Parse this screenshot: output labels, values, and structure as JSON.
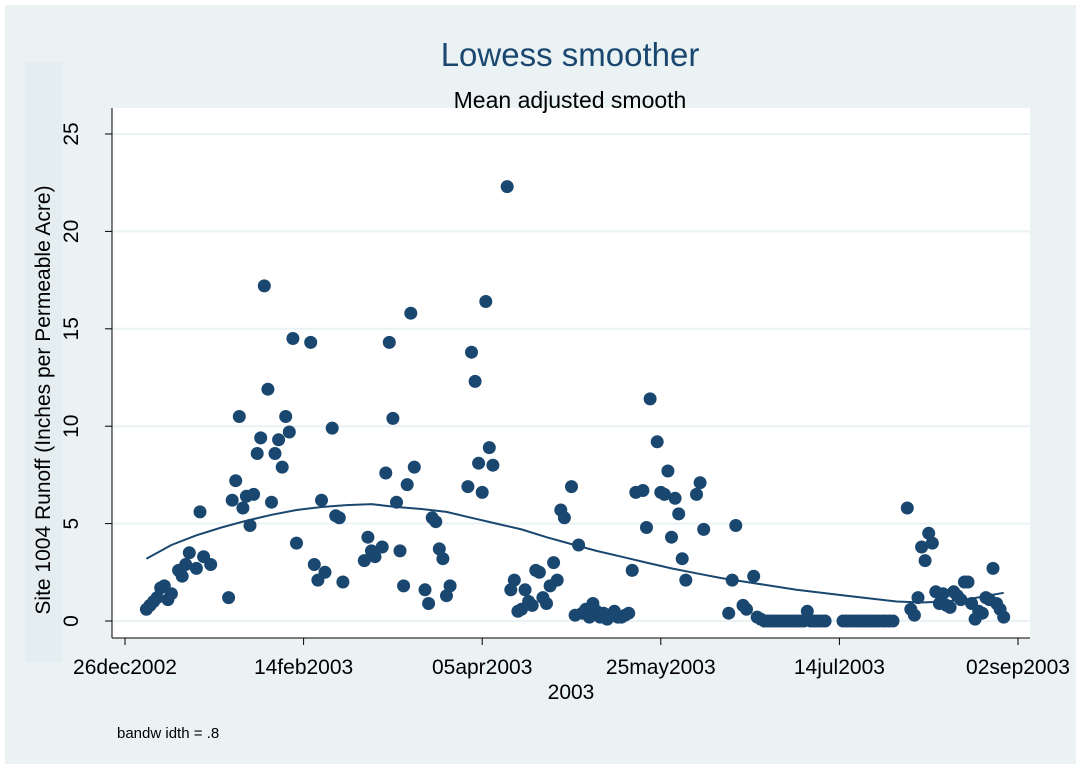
{
  "chart_data": {
    "type": "scatter",
    "title": "Lowess smoother",
    "subtitle": "Mean adjusted smooth",
    "xlabel": "2003",
    "ylabel": "Site 1004 Runoff (Inches per Permeable Acre)",
    "note": "bandw idth = .8",
    "grid": true,
    "legend": "none",
    "xlim": [
      "2002-12-26",
      "2003-09-02"
    ],
    "ylim": [
      0,
      25
    ],
    "x_ticks": [
      {
        "date": "2002-12-26",
        "label": "26dec2002"
      },
      {
        "date": "2003-02-14",
        "label": "14feb2003"
      },
      {
        "date": "2003-04-05",
        "label": "05apr2003"
      },
      {
        "date": "2003-05-25",
        "label": "25may2003"
      },
      {
        "date": "2003-07-14",
        "label": "14jul2003"
      },
      {
        "date": "2003-09-02",
        "label": "02sep2003"
      }
    ],
    "y_ticks": [
      0,
      5,
      10,
      15,
      20,
      25
    ],
    "colors": {
      "background": "#eaf2f3",
      "plot_background": "#ffffff",
      "grid": "#eaf2f3",
      "points": "#1a476f",
      "smooth_line": "#1a476f",
      "title": "#1a476f",
      "axis": "#000000"
    },
    "series": [
      {
        "type": "scatter",
        "points": [
          [
            "2003-01-01",
            0.6
          ],
          [
            "2003-01-02",
            0.8
          ],
          [
            "2003-01-03",
            1.0
          ],
          [
            "2003-01-04",
            1.2
          ],
          [
            "2003-01-05",
            1.7
          ],
          [
            "2003-01-06",
            1.8
          ],
          [
            "2003-01-07",
            1.1
          ],
          [
            "2003-01-08",
            1.4
          ],
          [
            "2003-01-10",
            2.6
          ],
          [
            "2003-01-11",
            2.3
          ],
          [
            "2003-01-12",
            2.9
          ],
          [
            "2003-01-13",
            3.5
          ],
          [
            "2003-01-15",
            2.7
          ],
          [
            "2003-01-16",
            5.6
          ],
          [
            "2003-01-17",
            3.3
          ],
          [
            "2003-01-19",
            2.9
          ],
          [
            "2003-01-24",
            1.2
          ],
          [
            "2003-01-25",
            6.2
          ],
          [
            "2003-01-26",
            7.2
          ],
          [
            "2003-01-27",
            10.5
          ],
          [
            "2003-01-28",
            5.8
          ],
          [
            "2003-01-29",
            6.4
          ],
          [
            "2003-01-30",
            4.9
          ],
          [
            "2003-01-31",
            6.5
          ],
          [
            "2003-02-01",
            8.6
          ],
          [
            "2003-02-02",
            9.4
          ],
          [
            "2003-02-03",
            17.2
          ],
          [
            "2003-02-04",
            11.9
          ],
          [
            "2003-02-05",
            6.1
          ],
          [
            "2003-02-06",
            8.6
          ],
          [
            "2003-02-07",
            9.3
          ],
          [
            "2003-02-08",
            7.9
          ],
          [
            "2003-02-09",
            10.5
          ],
          [
            "2003-02-10",
            9.7
          ],
          [
            "2003-02-11",
            14.5
          ],
          [
            "2003-02-12",
            4.0
          ],
          [
            "2003-02-16",
            14.3
          ],
          [
            "2003-02-17",
            2.9
          ],
          [
            "2003-02-18",
            2.1
          ],
          [
            "2003-02-19",
            6.2
          ],
          [
            "2003-02-20",
            2.5
          ],
          [
            "2003-02-22",
            9.9
          ],
          [
            "2003-02-23",
            5.4
          ],
          [
            "2003-02-24",
            5.3
          ],
          [
            "2003-02-25",
            2.0
          ],
          [
            "2003-03-03",
            3.1
          ],
          [
            "2003-03-04",
            4.3
          ],
          [
            "2003-03-05",
            3.6
          ],
          [
            "2003-03-06",
            3.3
          ],
          [
            "2003-03-08",
            3.8
          ],
          [
            "2003-03-09",
            7.6
          ],
          [
            "2003-03-10",
            14.3
          ],
          [
            "2003-03-11",
            10.4
          ],
          [
            "2003-03-12",
            6.1
          ],
          [
            "2003-03-13",
            3.6
          ],
          [
            "2003-03-14",
            1.8
          ],
          [
            "2003-03-15",
            7.0
          ],
          [
            "2003-03-16",
            15.8
          ],
          [
            "2003-03-17",
            7.9
          ],
          [
            "2003-03-20",
            1.6
          ],
          [
            "2003-03-21",
            0.9
          ],
          [
            "2003-03-22",
            5.3
          ],
          [
            "2003-03-23",
            5.1
          ],
          [
            "2003-03-24",
            3.7
          ],
          [
            "2003-03-25",
            3.2
          ],
          [
            "2003-03-26",
            1.3
          ],
          [
            "2003-03-27",
            1.8
          ],
          [
            "2003-04-01",
            6.9
          ],
          [
            "2003-04-02",
            13.8
          ],
          [
            "2003-04-03",
            12.3
          ],
          [
            "2003-04-04",
            8.1
          ],
          [
            "2003-04-05",
            6.6
          ],
          [
            "2003-04-06",
            16.4
          ],
          [
            "2003-04-07",
            8.9
          ],
          [
            "2003-04-08",
            8.0
          ],
          [
            "2003-04-12",
            22.3
          ],
          [
            "2003-04-13",
            1.6
          ],
          [
            "2003-04-14",
            2.1
          ],
          [
            "2003-04-15",
            0.5
          ],
          [
            "2003-04-16",
            0.6
          ],
          [
            "2003-04-17",
            1.6
          ],
          [
            "2003-04-18",
            1.0
          ],
          [
            "2003-04-19",
            0.8
          ],
          [
            "2003-04-20",
            2.6
          ],
          [
            "2003-04-21",
            2.5
          ],
          [
            "2003-04-22",
            1.2
          ],
          [
            "2003-04-23",
            0.9
          ],
          [
            "2003-04-24",
            1.8
          ],
          [
            "2003-04-25",
            3.0
          ],
          [
            "2003-04-26",
            2.1
          ],
          [
            "2003-04-27",
            5.7
          ],
          [
            "2003-04-28",
            5.3
          ],
          [
            "2003-04-30",
            6.9
          ],
          [
            "2003-05-02",
            3.9
          ],
          [
            "2003-05-01",
            0.3
          ],
          [
            "2003-05-03",
            0.4
          ],
          [
            "2003-05-04",
            0.6
          ],
          [
            "2003-05-05",
            0.2
          ],
          [
            "2003-05-06",
            0.9
          ],
          [
            "2003-05-07",
            0.5
          ],
          [
            "2003-05-08",
            0.2
          ],
          [
            "2003-05-09",
            0.4
          ],
          [
            "2003-05-10",
            0.1
          ],
          [
            "2003-05-11",
            0.3
          ],
          [
            "2003-05-12",
            0.5
          ],
          [
            "2003-05-13",
            0.2
          ],
          [
            "2003-05-14",
            0.2
          ],
          [
            "2003-05-15",
            0.3
          ],
          [
            "2003-05-16",
            0.4
          ],
          [
            "2003-05-17",
            2.6
          ],
          [
            "2003-05-18",
            6.6
          ],
          [
            "2003-05-20",
            6.7
          ],
          [
            "2003-05-21",
            4.8
          ],
          [
            "2003-05-22",
            11.4
          ],
          [
            "2003-05-24",
            9.2
          ],
          [
            "2003-05-25",
            6.6
          ],
          [
            "2003-05-26",
            6.5
          ],
          [
            "2003-05-27",
            7.7
          ],
          [
            "2003-05-28",
            4.3
          ],
          [
            "2003-05-29",
            6.3
          ],
          [
            "2003-05-30",
            5.5
          ],
          [
            "2003-05-31",
            3.2
          ],
          [
            "2003-06-01",
            2.1
          ],
          [
            "2003-06-04",
            6.5
          ],
          [
            "2003-06-05",
            7.1
          ],
          [
            "2003-06-06",
            4.7
          ],
          [
            "2003-06-13",
            0.4
          ],
          [
            "2003-06-14",
            2.1
          ],
          [
            "2003-06-15",
            4.9
          ],
          [
            "2003-06-17",
            0.8
          ],
          [
            "2003-06-18",
            0.6
          ],
          [
            "2003-06-20",
            2.3
          ],
          [
            "2003-06-21",
            0.2
          ],
          [
            "2003-06-22",
            0.1
          ],
          [
            "2003-06-23",
            0.0
          ],
          [
            "2003-06-24",
            0.0
          ],
          [
            "2003-06-25",
            0.0
          ],
          [
            "2003-06-26",
            0.0
          ],
          [
            "2003-06-27",
            0.0
          ],
          [
            "2003-06-28",
            0.0
          ],
          [
            "2003-06-29",
            0.0
          ],
          [
            "2003-06-30",
            0.0
          ],
          [
            "2003-07-01",
            0.0
          ],
          [
            "2003-07-02",
            0.0
          ],
          [
            "2003-07-03",
            0.0
          ],
          [
            "2003-07-04",
            0.0
          ],
          [
            "2003-07-05",
            0.5
          ],
          [
            "2003-07-06",
            0.0
          ],
          [
            "2003-07-07",
            0.0
          ],
          [
            "2003-07-08",
            0.0
          ],
          [
            "2003-07-09",
            0.0
          ],
          [
            "2003-07-10",
            0.0
          ],
          [
            "2003-07-15",
            0.0
          ],
          [
            "2003-07-16",
            0.0
          ],
          [
            "2003-07-17",
            0.0
          ],
          [
            "2003-07-18",
            0.0
          ],
          [
            "2003-07-19",
            0.0
          ],
          [
            "2003-07-20",
            0.0
          ],
          [
            "2003-07-21",
            0.0
          ],
          [
            "2003-07-22",
            0.0
          ],
          [
            "2003-07-23",
            0.0
          ],
          [
            "2003-07-24",
            0.0
          ],
          [
            "2003-07-25",
            0.0
          ],
          [
            "2003-07-26",
            0.0
          ],
          [
            "2003-07-27",
            0.0
          ],
          [
            "2003-07-28",
            0.0
          ],
          [
            "2003-07-29",
            0.0
          ],
          [
            "2003-08-02",
            5.8
          ],
          [
            "2003-08-03",
            0.6
          ],
          [
            "2003-08-04",
            0.3
          ],
          [
            "2003-08-05",
            1.2
          ],
          [
            "2003-08-06",
            3.8
          ],
          [
            "2003-08-07",
            3.1
          ],
          [
            "2003-08-08",
            4.5
          ],
          [
            "2003-08-09",
            4.0
          ],
          [
            "2003-08-10",
            1.5
          ],
          [
            "2003-08-11",
            0.9
          ],
          [
            "2003-08-12",
            1.4
          ],
          [
            "2003-08-13",
            0.8
          ],
          [
            "2003-08-14",
            0.7
          ],
          [
            "2003-08-15",
            1.5
          ],
          [
            "2003-08-16",
            1.3
          ],
          [
            "2003-08-17",
            1.1
          ],
          [
            "2003-08-18",
            2.0
          ],
          [
            "2003-08-19",
            2.0
          ],
          [
            "2003-08-20",
            0.9
          ],
          [
            "2003-08-21",
            0.1
          ],
          [
            "2003-08-22",
            0.5
          ],
          [
            "2003-08-23",
            0.4
          ],
          [
            "2003-08-24",
            1.2
          ],
          [
            "2003-08-25",
            1.1
          ],
          [
            "2003-08-26",
            2.7
          ],
          [
            "2003-08-27",
            0.9
          ],
          [
            "2003-08-28",
            0.6
          ],
          [
            "2003-08-29",
            0.2
          ]
        ]
      },
      {
        "type": "line",
        "points": [
          [
            "2003-01-01",
            3.2
          ],
          [
            "2003-01-08",
            3.9
          ],
          [
            "2003-01-15",
            4.4
          ],
          [
            "2003-01-22",
            4.8
          ],
          [
            "2003-01-29",
            5.15
          ],
          [
            "2003-02-05",
            5.45
          ],
          [
            "2003-02-12",
            5.7
          ],
          [
            "2003-02-19",
            5.85
          ],
          [
            "2003-02-26",
            5.95
          ],
          [
            "2003-03-05",
            6.0
          ],
          [
            "2003-03-12",
            5.85
          ],
          [
            "2003-03-19",
            5.75
          ],
          [
            "2003-03-26",
            5.6
          ],
          [
            "2003-04-02",
            5.3
          ],
          [
            "2003-04-09",
            5.0
          ],
          [
            "2003-04-16",
            4.7
          ],
          [
            "2003-04-23",
            4.3
          ],
          [
            "2003-04-30",
            3.95
          ],
          [
            "2003-05-07",
            3.6
          ],
          [
            "2003-05-14",
            3.3
          ],
          [
            "2003-05-21",
            3.0
          ],
          [
            "2003-05-28",
            2.7
          ],
          [
            "2003-06-04",
            2.45
          ],
          [
            "2003-06-11",
            2.2
          ],
          [
            "2003-06-18",
            2.0
          ],
          [
            "2003-06-25",
            1.8
          ],
          [
            "2003-07-02",
            1.6
          ],
          [
            "2003-07-09",
            1.45
          ],
          [
            "2003-07-16",
            1.3
          ],
          [
            "2003-07-23",
            1.15
          ],
          [
            "2003-07-30",
            1.0
          ],
          [
            "2003-08-06",
            0.95
          ],
          [
            "2003-08-13",
            1.0
          ],
          [
            "2003-08-20",
            1.15
          ],
          [
            "2003-08-29",
            1.45
          ]
        ]
      }
    ]
  }
}
